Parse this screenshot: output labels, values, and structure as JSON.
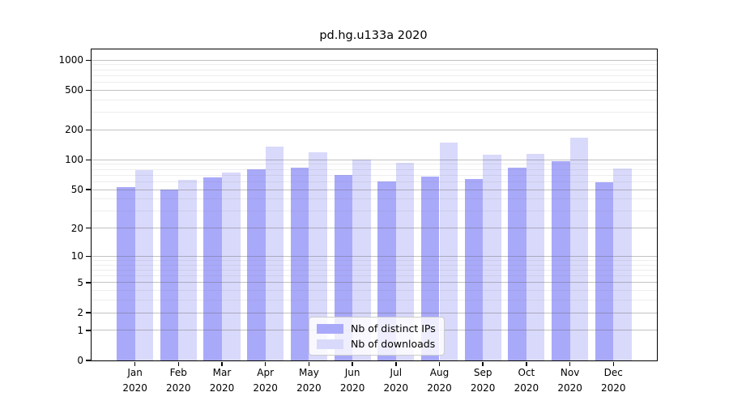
{
  "title": "pd.hg.u133a 2020",
  "chart_data": {
    "type": "bar",
    "title": "pd.hg.u133a 2020",
    "categories": [
      "Jan",
      "Feb",
      "Mar",
      "Apr",
      "May",
      "Jun",
      "Jul",
      "Aug",
      "Sep",
      "Oct",
      "Nov",
      "Dec"
    ],
    "year_label": "2020",
    "series": [
      {
        "name": "Nb of distinct IPs",
        "color": "#a9a9fa",
        "values": [
          53,
          50,
          67,
          80,
          83,
          71,
          61,
          68,
          64,
          83,
          97,
          59
        ]
      },
      {
        "name": "Nb of downloads",
        "color": "#d9d9fb",
        "values": [
          79,
          63,
          75,
          136,
          120,
          101,
          93,
          150,
          112,
          115,
          166,
          82
        ]
      }
    ],
    "xlabel": "",
    "ylabel": "",
    "y_scale": "log1p (symlog-like)",
    "ylim": [
      0,
      1281
    ],
    "y_ticks": [
      0,
      1,
      2,
      5,
      10,
      20,
      50,
      100,
      200,
      500,
      1000
    ],
    "y_minor_ticks": [
      3,
      4,
      6,
      7,
      8,
      9,
      30,
      40,
      60,
      70,
      80,
      90,
      300,
      400,
      600,
      700,
      800,
      900
    ],
    "grid": "horizontal gridlines drawn over bars",
    "legend_position": "inside bottom-center",
    "colors": {
      "axis": "#000000",
      "major_grid": "#bcbcbc",
      "minor_grid": "#ededed",
      "legend_border": "#cccccc"
    }
  },
  "legend": {
    "items": [
      {
        "label": "Nb of distinct IPs"
      },
      {
        "label": "Nb of downloads"
      }
    ]
  }
}
